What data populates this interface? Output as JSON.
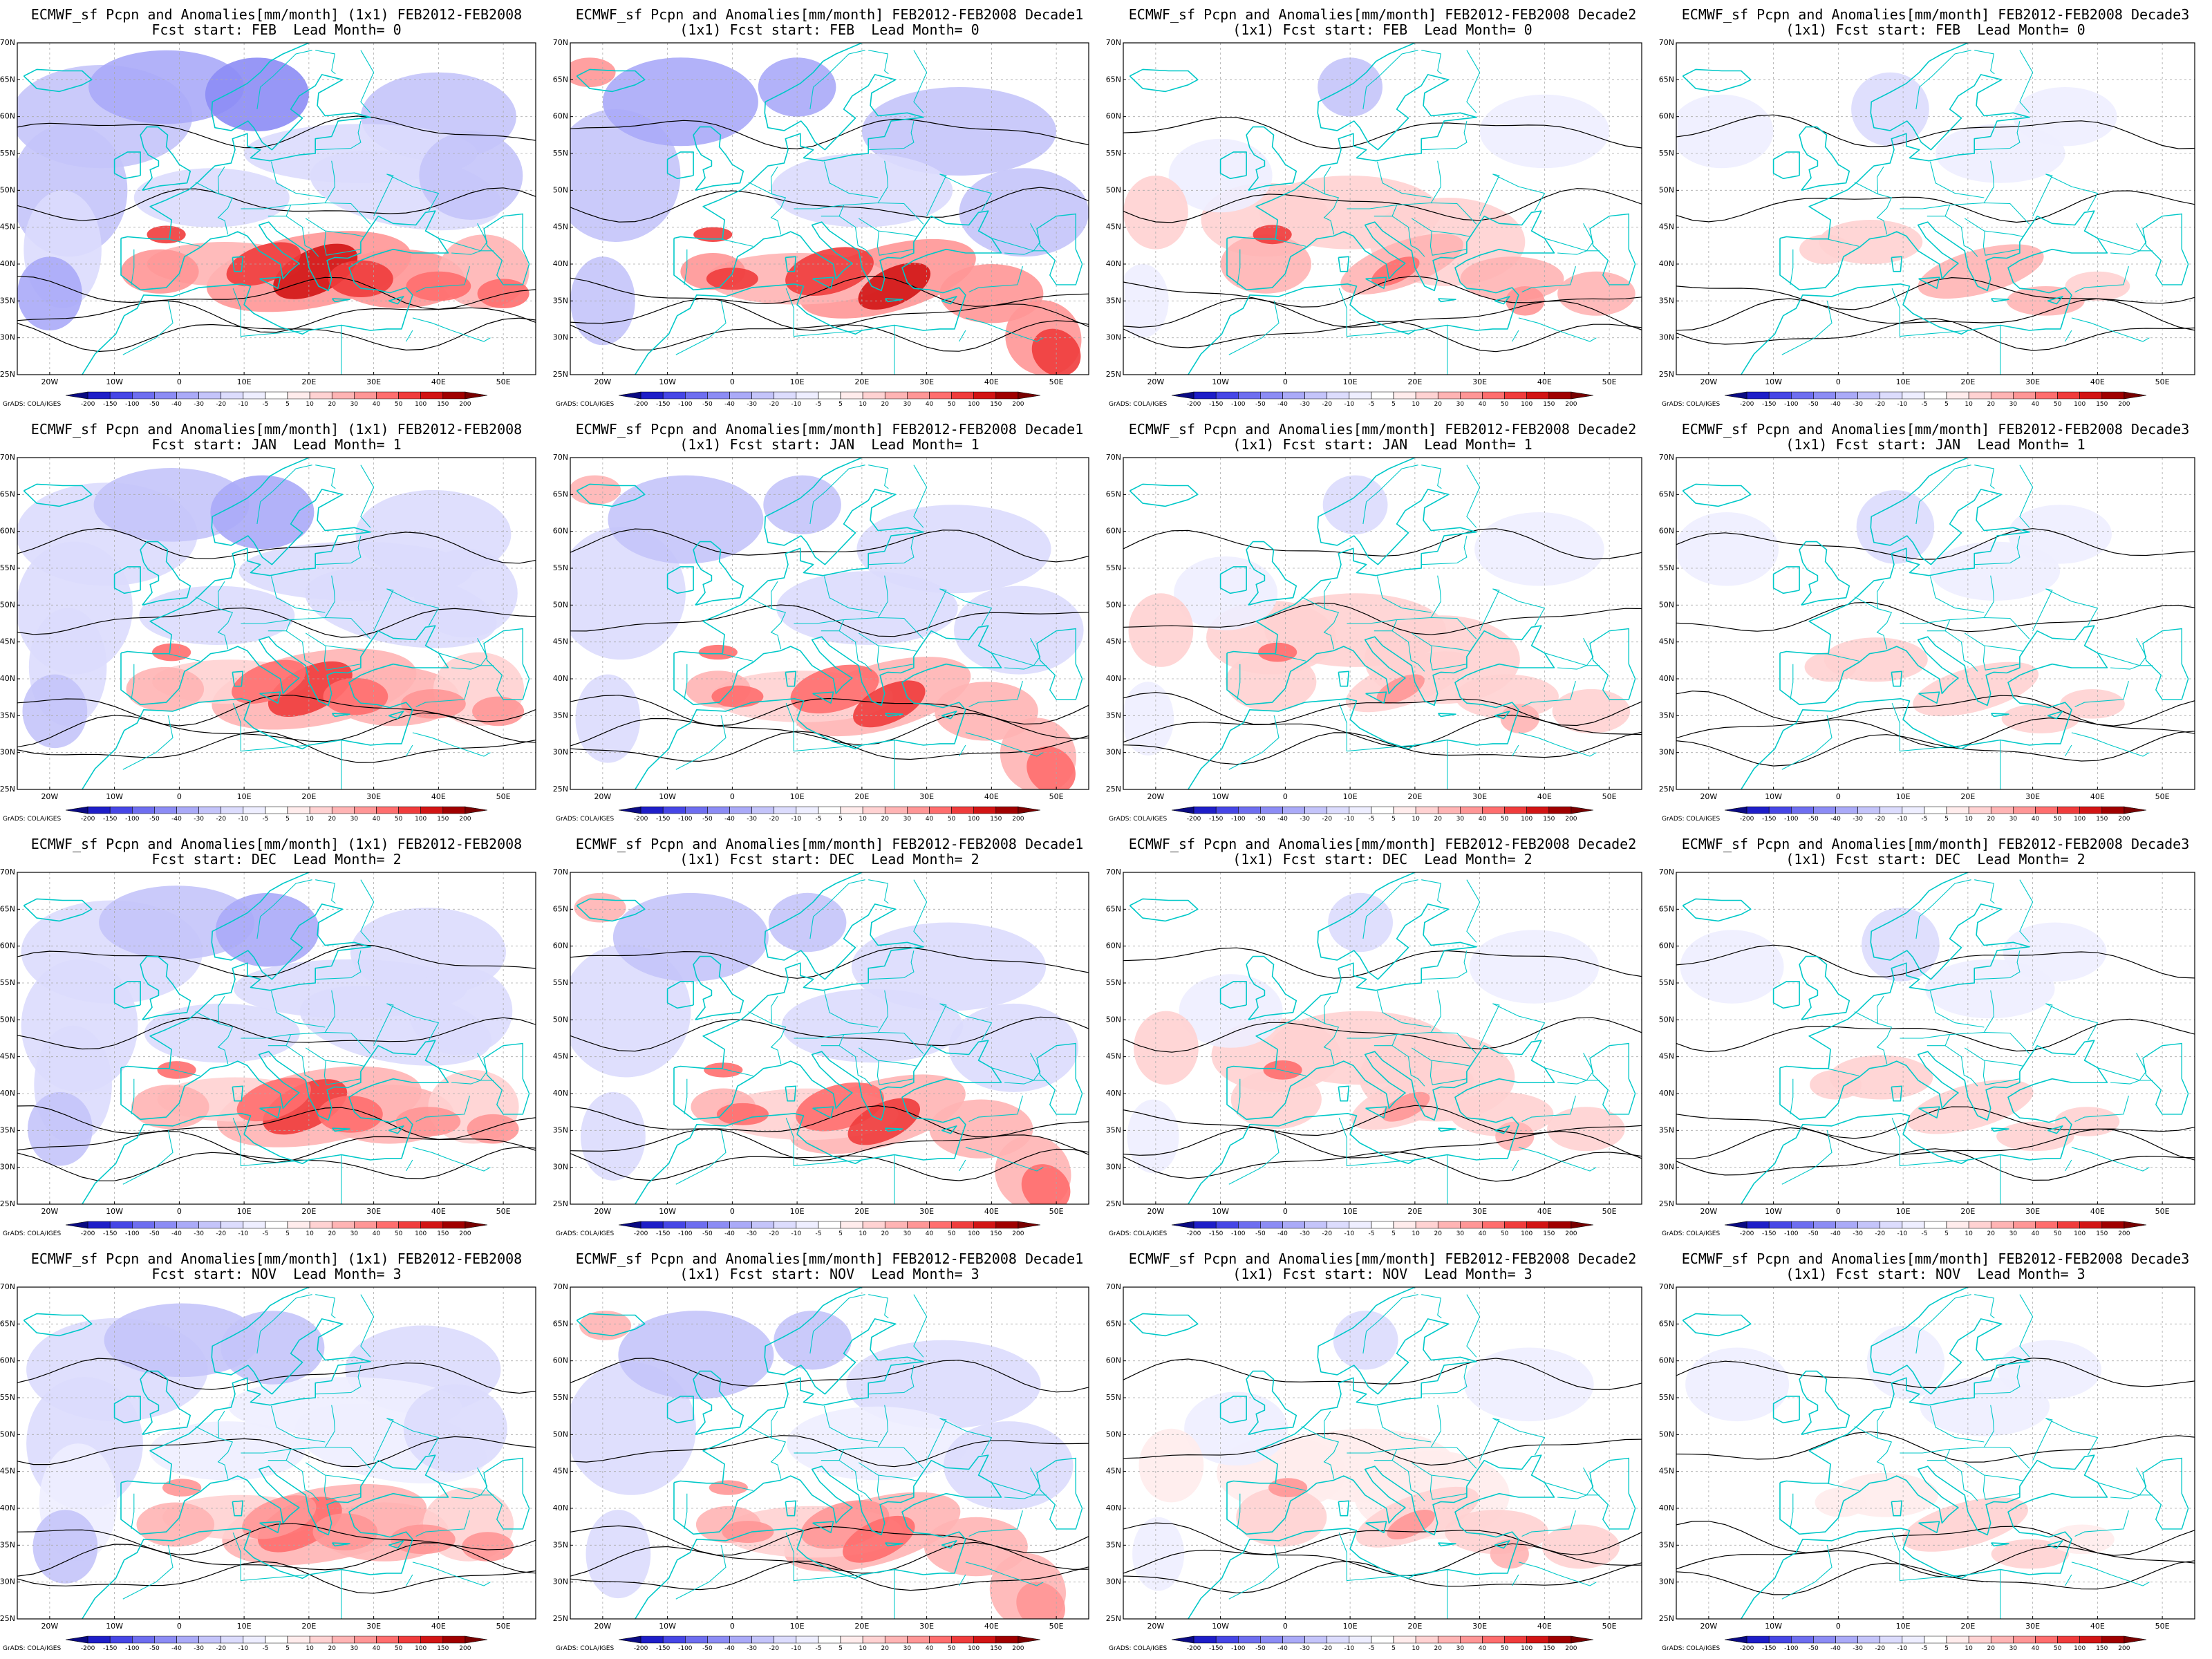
{
  "figure": {
    "credit": "GrADS: COLA/IGES",
    "map_extent": {
      "lon_min": -25,
      "lon_max": 55,
      "lat_min": 25,
      "lat_max": 70
    },
    "lat_ticks": [
      "25N",
      "30N",
      "35N",
      "40N",
      "45N",
      "50N",
      "55N",
      "60N",
      "65N",
      "70N"
    ],
    "lon_ticks": [
      "20W",
      "10W",
      "0",
      "10E",
      "20E",
      "30E",
      "40E",
      "50E"
    ],
    "colorbar": {
      "labels": [
        "-200",
        "-150",
        "-100",
        "-50",
        "-40",
        "-30",
        "-20",
        "-10",
        "-5",
        "5",
        "10",
        "20",
        "30",
        "40",
        "50",
        "100",
        "150",
        "200"
      ],
      "colors": [
        "#0a0a82",
        "#1e1ec8",
        "#4646e6",
        "#6e6ef0",
        "#8c8cf5",
        "#aaaaf8",
        "#c4c4fa",
        "#dcdcfd",
        "#eeeeff",
        "#ffffff",
        "#ffecec",
        "#ffd2d2",
        "#ffb4b4",
        "#ff9696",
        "#ff6e6e",
        "#f03c3c",
        "#d21414",
        "#a00000",
        "#780000"
      ]
    },
    "colors": {
      "coast": "#00c8c8",
      "contour": "#000000",
      "grid": "#aaaaaa"
    }
  },
  "panels": [
    {
      "title1": "ECMWF_sf Pcpn and Anomalies[mm/month] (1x1) FEB2012-FEB2008",
      "title2": "Fcst start: FEB  Lead Month= 0",
      "lead": 0,
      "period": "monthly"
    },
    {
      "title1": "ECMWF_sf Pcpn and Anomalies[mm/month] FEB2012-FEB2008 Decade1",
      "title2": "(1x1) Fcst start: FEB  Lead Month= 0",
      "lead": 0,
      "period": "decade1"
    },
    {
      "title1": "ECMWF_sf Pcpn and Anomalies[mm/month] FEB2012-FEB2008 Decade2",
      "title2": "(1x1) Fcst start: FEB  Lead Month= 0",
      "lead": 0,
      "period": "decade2"
    },
    {
      "title1": "ECMWF_sf Pcpn and Anomalies[mm/month] FEB2012-FEB2008 Decade3",
      "title2": "(1x1) Fcst start: FEB  Lead Month= 0",
      "lead": 0,
      "period": "decade3"
    },
    {
      "title1": "ECMWF_sf Pcpn and Anomalies[mm/month] (1x1) FEB2012-FEB2008",
      "title2": "Fcst start: JAN  Lead Month= 1",
      "lead": 1,
      "period": "monthly"
    },
    {
      "title1": "ECMWF_sf Pcpn and Anomalies[mm/month] FEB2012-FEB2008 Decade1",
      "title2": "(1x1) Fcst start: JAN  Lead Month= 1",
      "lead": 1,
      "period": "decade1"
    },
    {
      "title1": "ECMWF_sf Pcpn and Anomalies[mm/month] FEB2012-FEB2008 Decade2",
      "title2": "(1x1) Fcst start: JAN  Lead Month= 1",
      "lead": 1,
      "period": "decade2"
    },
    {
      "title1": "ECMWF_sf Pcpn and Anomalies[mm/month] FEB2012-FEB2008 Decade3",
      "title2": "(1x1) Fcst start: JAN  Lead Month= 1",
      "lead": 1,
      "period": "decade3"
    },
    {
      "title1": "ECMWF_sf Pcpn and Anomalies[mm/month] (1x1) FEB2012-FEB2008",
      "title2": "Fcst start: DEC  Lead Month= 2",
      "lead": 2,
      "period": "monthly"
    },
    {
      "title1": "ECMWF_sf Pcpn and Anomalies[mm/month] FEB2012-FEB2008 Decade1",
      "title2": "(1x1) Fcst start: DEC  Lead Month= 2",
      "lead": 2,
      "period": "decade1"
    },
    {
      "title1": "ECMWF_sf Pcpn and Anomalies[mm/month] FEB2012-FEB2008 Decade2",
      "title2": "(1x1) Fcst start: DEC  Lead Month= 2",
      "lead": 2,
      "period": "decade2"
    },
    {
      "title1": "ECMWF_sf Pcpn and Anomalies[mm/month] FEB2012-FEB2008 Decade3",
      "title2": "(1x1) Fcst start: DEC  Lead Month= 2",
      "lead": 2,
      "period": "decade3"
    },
    {
      "title1": "ECMWF_sf Pcpn and Anomalies[mm/month] (1x1) FEB2012-FEB2008",
      "title2": "Fcst start: NOV  Lead Month= 3",
      "lead": 3,
      "period": "monthly"
    },
    {
      "title1": "ECMWF_sf Pcpn and Anomalies[mm/month] FEB2012-FEB2008 Decade1",
      "title2": "(1x1) Fcst start: NOV  Lead Month= 3",
      "lead": 3,
      "period": "decade1"
    },
    {
      "title1": "ECMWF_sf Pcpn and Anomalies[mm/month] FEB2012-FEB2008 Decade2",
      "title2": "(1x1) Fcst start: NOV  Lead Month= 3",
      "lead": 3,
      "period": "decade2"
    },
    {
      "title1": "ECMWF_sf Pcpn and Anomalies[mm/month] FEB2012-FEB2008 Decade3",
      "title2": "(1x1) Fcst start: NOV  Lead Month= 3",
      "lead": 3,
      "period": "decade3"
    }
  ]
}
